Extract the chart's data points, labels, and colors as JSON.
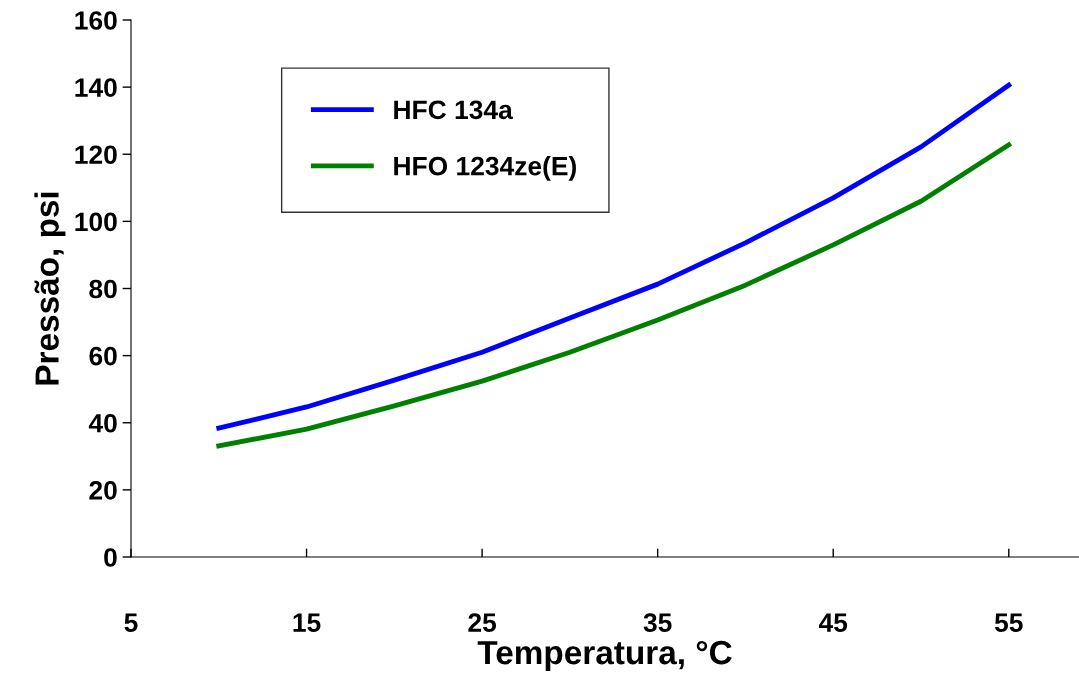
{
  "chart_data": {
    "type": "line",
    "xlabel": "Temperatura, °C",
    "ylabel": "Pressão, psi",
    "x": [
      10,
      15,
      20,
      25,
      30,
      35,
      40,
      45,
      50,
      55
    ],
    "series": [
      {
        "name": "HFC 134a",
        "color": "#0000ff",
        "values": [
          38.4,
          44.7,
          52.7,
          61,
          71.2,
          81.3,
          93.6,
          107,
          122.2,
          140.6
        ]
      },
      {
        "name": "HFO 1234ze(E)",
        "color": "#008000",
        "values": [
          33.1,
          38.1,
          45,
          52.4,
          61,
          70.6,
          81,
          93,
          106,
          122.8
        ]
      }
    ],
    "xlim": [
      5,
      59
    ],
    "xticks": [
      5,
      15,
      25,
      35,
      45,
      55
    ],
    "ylim": [
      0,
      160
    ],
    "yticks": [
      0,
      20,
      40,
      60,
      80,
      100,
      120,
      140,
      160
    ],
    "grid": false,
    "legend": "top left",
    "marker": "none",
    "line_style": "solid"
  }
}
